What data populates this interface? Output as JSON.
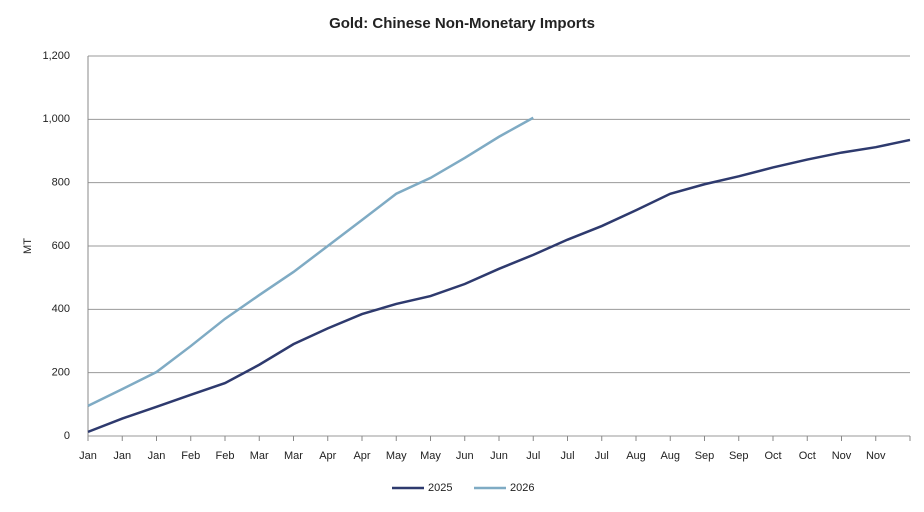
{
  "chart_data": {
    "type": "line",
    "title": "Gold: Chinese Non-Monetary Imports",
    "y_label": "MT",
    "categories": [
      "Jan",
      "Jan",
      "Jan",
      "Feb",
      "Feb",
      "Mar",
      "Mar",
      "Apr",
      "Apr",
      "May",
      "May",
      "Jun",
      "Jun",
      "Jul",
      "Jul",
      "Jul",
      "Aug",
      "Aug",
      "Sep",
      "Sep",
      "Oct",
      "Oct",
      "Nov",
      "Nov",
      null
    ],
    "series": [
      {
        "name": "2025",
        "color": "#2e3a6e",
        "values": [
          13,
          55,
          92,
          130,
          167,
          225,
          290,
          340,
          385,
          417,
          442,
          480,
          528,
          572,
          620,
          663,
          713,
          765,
          795,
          820,
          848,
          873,
          895,
          912,
          935
        ]
      },
      {
        "name": "2026",
        "color": "#7fabc4",
        "values": [
          95,
          148,
          202,
          284,
          370,
          445,
          518,
          600,
          682,
          765,
          815,
          878,
          945,
          1005,
          null,
          null,
          null,
          null,
          null,
          null,
          null,
          null,
          null,
          null,
          null
        ]
      }
    ],
    "ylim": [
      0,
      1200
    ],
    "yticks": [
      0,
      200,
      400,
      600,
      800,
      {
        "value": 1000,
        "label": "1,000"
      },
      {
        "value": 1200,
        "label": "1,200"
      }
    ],
    "grid": true,
    "legend": "bottom"
  }
}
